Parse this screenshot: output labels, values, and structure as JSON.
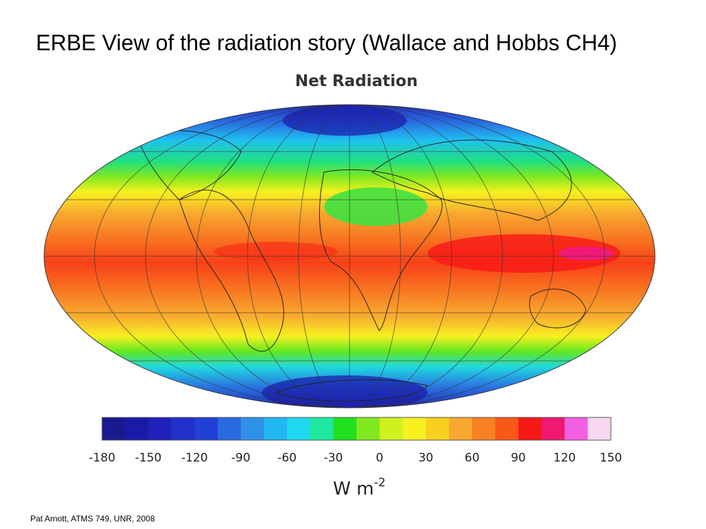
{
  "slide_title": "ERBE View of the radiation story (Wallace and Hobbs CH4)",
  "figure": {
    "title": "Net Radiation",
    "colorbar": {
      "ticks": [
        -180,
        -150,
        -120,
        -90,
        -60,
        -30,
        0,
        30,
        60,
        90,
        120,
        150
      ],
      "colors": [
        "#1a1a90",
        "#1a1aa8",
        "#1e22b8",
        "#2030c8",
        "#2040d8",
        "#2a6ae0",
        "#3090e8",
        "#20b8f0",
        "#20d8f0",
        "#20e8a0",
        "#20e020",
        "#80e820",
        "#d0f020",
        "#f8f020",
        "#f8d020",
        "#f8a830",
        "#f88020",
        "#f85818",
        "#f81818",
        "#f01870",
        "#f060e0",
        "#f8d8f0"
      ],
      "unit": "W m",
      "unit_exponent": "-2"
    }
  },
  "footer": "Pat Arnott, ATMS 749, UNR, 2008"
}
